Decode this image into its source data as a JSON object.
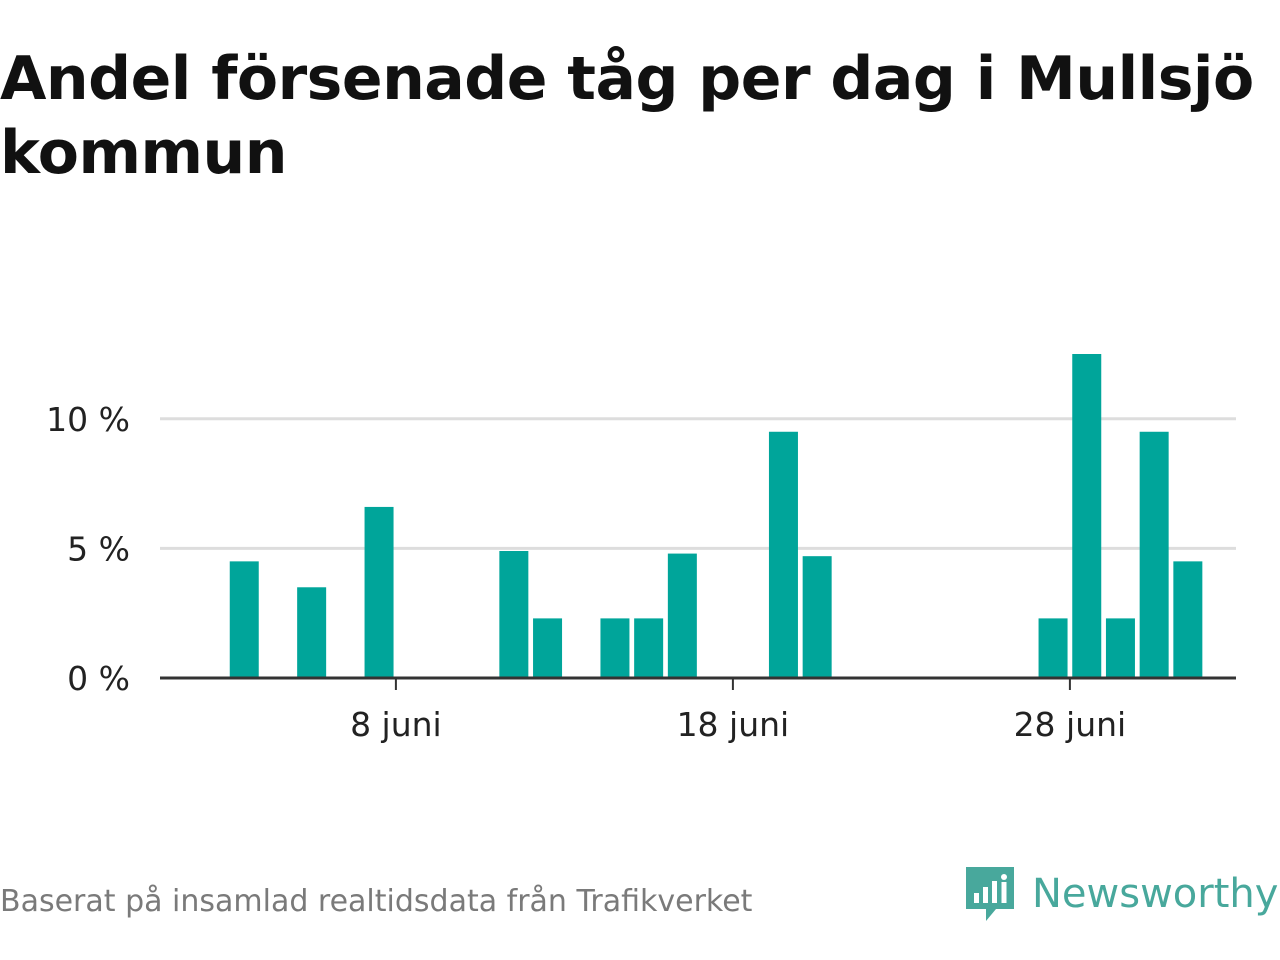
{
  "title": "Andel försenade tåg per dag i Mullsjö kommun",
  "footer": {
    "source": "Baserat på insamlad realtidsdata från Trafikverket",
    "brand": "Newsworthy"
  },
  "colors": {
    "bar": "#00a59a",
    "grid": "#dddddd",
    "axis": "#333333",
    "brand": "#48a89c"
  },
  "icons": {
    "brand_logo": "newsworthy-logo-icon"
  },
  "chart_data": {
    "type": "bar",
    "x_unit": "day of June",
    "x_domain": [
      1,
      31
    ],
    "y_unit": "percent",
    "ylim": [
      0,
      12.5
    ],
    "y_ticks": [
      {
        "value": 0,
        "label": "0 %"
      },
      {
        "value": 5,
        "label": "5 %"
      },
      {
        "value": 10,
        "label": "10 %"
      }
    ],
    "x_ticks": [
      {
        "day": 8,
        "label": "8 juni"
      },
      {
        "day": 18,
        "label": "18 juni"
      },
      {
        "day": 28,
        "label": "28 juni"
      }
    ],
    "grid": true,
    "bars": [
      {
        "day": 3,
        "value": 4.5
      },
      {
        "day": 5,
        "value": 3.5
      },
      {
        "day": 7,
        "value": 6.6
      },
      {
        "day": 11,
        "value": 4.9
      },
      {
        "day": 12,
        "value": 2.3
      },
      {
        "day": 14,
        "value": 2.3
      },
      {
        "day": 15,
        "value": 2.3
      },
      {
        "day": 16,
        "value": 4.8
      },
      {
        "day": 19,
        "value": 9.5
      },
      {
        "day": 20,
        "value": 4.7
      },
      {
        "day": 27,
        "value": 2.3
      },
      {
        "day": 28,
        "value": 12.5
      },
      {
        "day": 29,
        "value": 2.3
      },
      {
        "day": 30,
        "value": 9.5
      },
      {
        "day": 31,
        "value": 4.5
      }
    ]
  }
}
